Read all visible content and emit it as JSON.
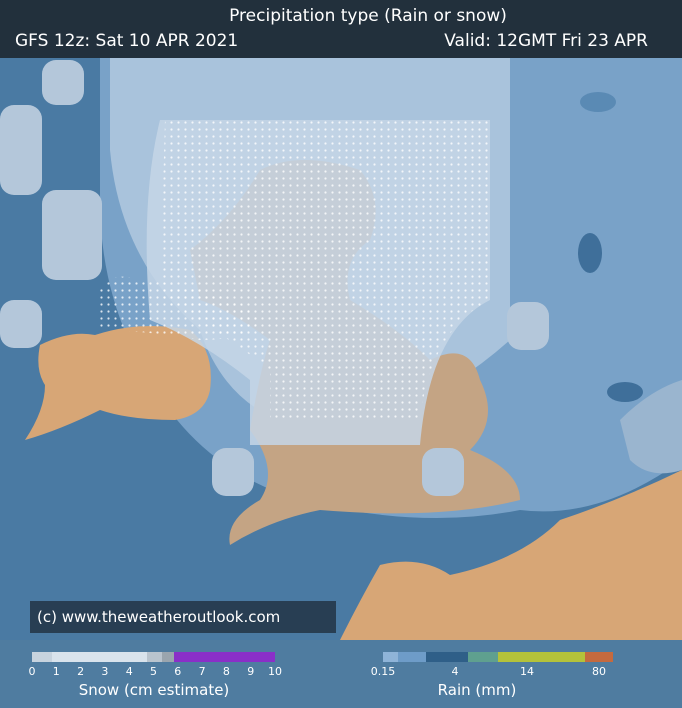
{
  "header": {
    "title": "Precipitation type (Rain or snow)",
    "run": "GFS 12z: Sat 10 APR 2021",
    "valid": "Valid: 12GMT Fri 23 APR"
  },
  "copyright": "(c) www.theweatheroutlook.com",
  "legend": {
    "snow": {
      "label": "Snow (cm estimate)",
      "ticks": [
        0,
        1,
        2,
        3,
        4,
        5,
        6,
        7,
        8,
        9,
        10
      ]
    },
    "rain": {
      "label": "Rain (mm)",
      "ticks": [
        0.15,
        4,
        14,
        80
      ]
    }
  }
}
